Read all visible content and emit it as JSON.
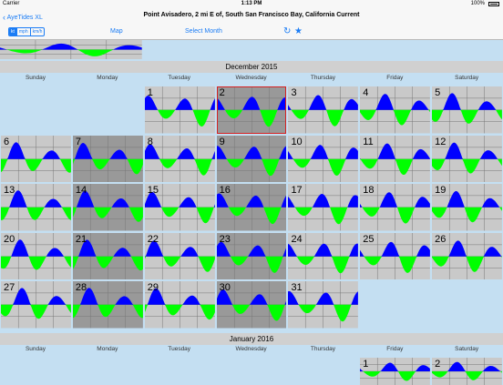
{
  "status_bar": {
    "carrier": "Carrier",
    "time": "1:13 PM",
    "battery": "100%"
  },
  "nav": {
    "back_label": "AyeTides XL",
    "title": "Point Avisadero, 2 mi E of, South San Francisco Bay, California Current"
  },
  "toolbar": {
    "units": [
      "kt",
      "mph",
      "km/h"
    ],
    "selected_unit": "kt",
    "map_label": "Map",
    "select_month_label": "Select Month",
    "refresh_icon": "refresh-icon",
    "favorite_icon": "star-icon"
  },
  "weekdays": [
    "Sunday",
    "Monday",
    "Tuesday",
    "Wednesday",
    "Thursday",
    "Friday",
    "Saturday"
  ],
  "colors": {
    "flood": "#0000ff",
    "ebb": "#00ff00",
    "day_cell": "#c9c9c9",
    "weekend_cell": "#999999",
    "selected_outline": "#d62020",
    "background": "#c4dff2"
  },
  "months": [
    {
      "label": "December 2015",
      "days": [
        "1",
        "2",
        "3",
        "4",
        "5",
        "6",
        "7",
        "8",
        "9",
        "10",
        "11",
        "12",
        "13",
        "14",
        "15",
        "16",
        "17",
        "18",
        "19",
        "20",
        "21",
        "22",
        "23",
        "24",
        "25",
        "26",
        "27",
        "28",
        "29",
        "30",
        "31"
      ],
      "selected_day": "2"
    },
    {
      "label": "January 2016",
      "days": [
        "1",
        "2"
      ]
    }
  ]
}
